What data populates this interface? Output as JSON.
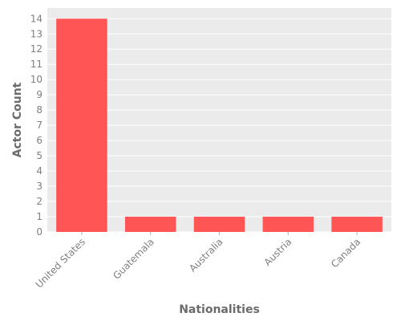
{
  "chart_data": {
    "type": "bar",
    "categories": [
      "United States",
      "Guatemala",
      "Australia",
      "Austria",
      "Canada"
    ],
    "values": [
      14,
      1,
      1,
      1,
      1
    ],
    "title": "",
    "xlabel": "Nationalities",
    "ylabel": "Actor Count",
    "ylim": [
      0,
      14.7
    ],
    "yticks": [
      0,
      1,
      2,
      3,
      4,
      5,
      6,
      7,
      8,
      9,
      10,
      11,
      12,
      13,
      14
    ],
    "grid": true,
    "legend": "none",
    "colors": {
      "bar": "#ff5555",
      "plot_background": "#ebebeb",
      "grid": "#ffffff",
      "text": "#7f7f7f"
    }
  }
}
